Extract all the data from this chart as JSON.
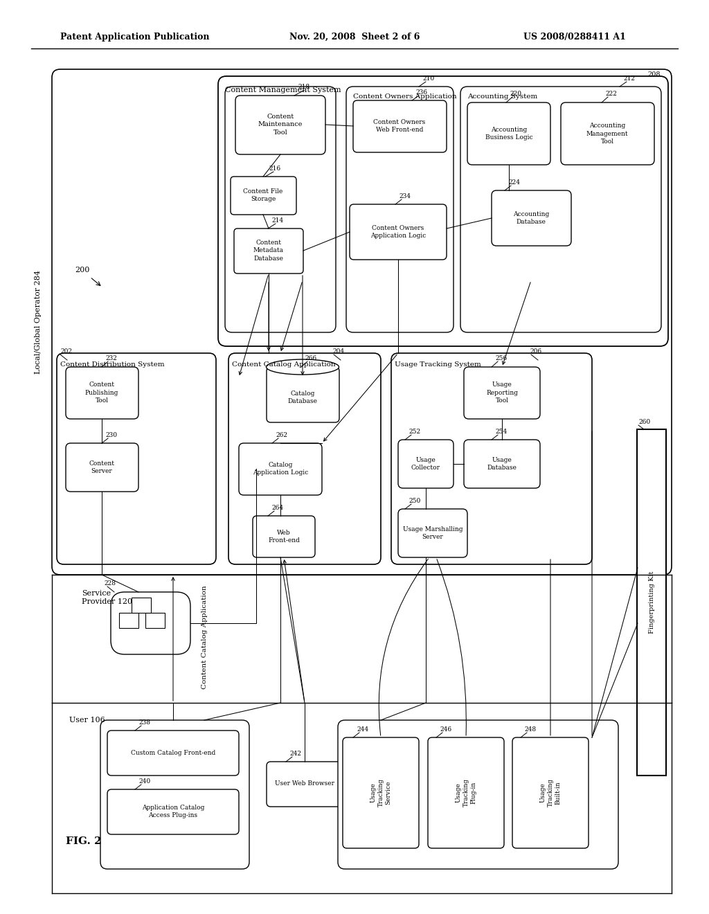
{
  "background": "#ffffff",
  "header_left": "Patent Application Publication",
  "header_mid": "Nov. 20, 2008  Sheet 2 of 6",
  "header_right": "US 2008/0288411 A1"
}
